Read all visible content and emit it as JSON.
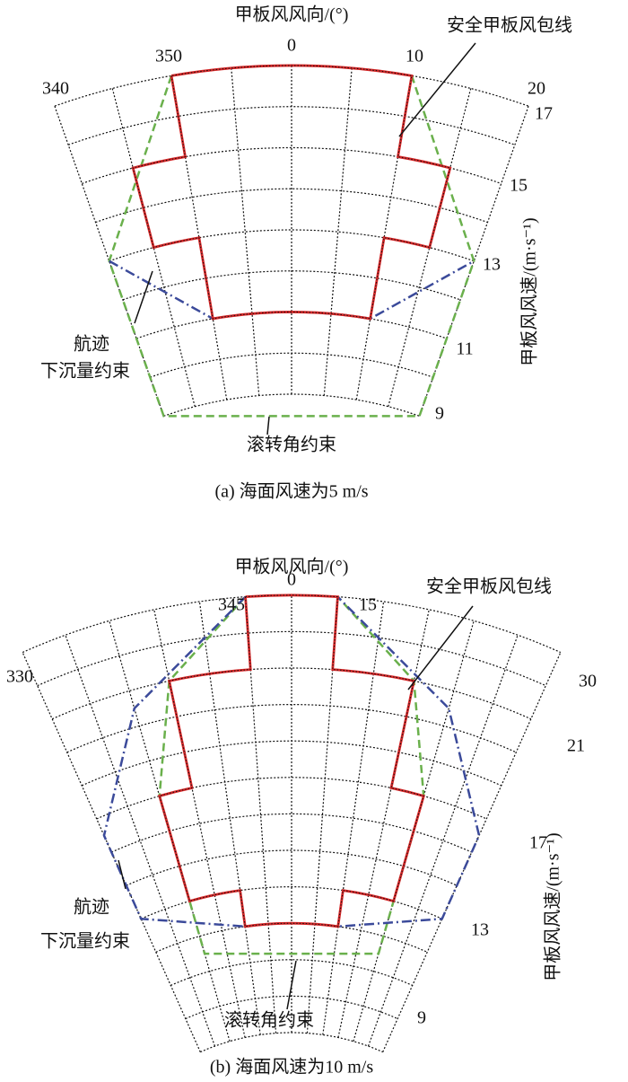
{
  "panels": [
    {
      "direction_title": "甲板风风向/(°)",
      "direction_labels": [
        "340",
        "350",
        "0",
        "10",
        "20"
      ],
      "speed_labels": [
        "17",
        "15",
        "13",
        "11",
        "9"
      ],
      "speed_title": "甲板风风速/(m·s⁻¹)",
      "envelope_label": "安全甲板风包线",
      "track_label": [
        "航迹",
        "下沉量约束"
      ],
      "roll_label": "滚转角约束",
      "caption": "(a) 海面风速为5 m/s"
    },
    {
      "direction_title": "甲板风风向/(°)",
      "direction_labels": [
        "330",
        "345",
        "0",
        "15",
        "30"
      ],
      "speed_labels": [
        "21",
        "17",
        "13",
        "9"
      ],
      "speed_title": "甲板风风速/(m·s⁻¹)",
      "envelope_label": "安全甲板风包线",
      "track_label": [
        "航迹",
        "下沉量约束"
      ],
      "roll_label": "滚转角约束",
      "caption": "(b) 海面风速为10 m/s"
    }
  ]
}
